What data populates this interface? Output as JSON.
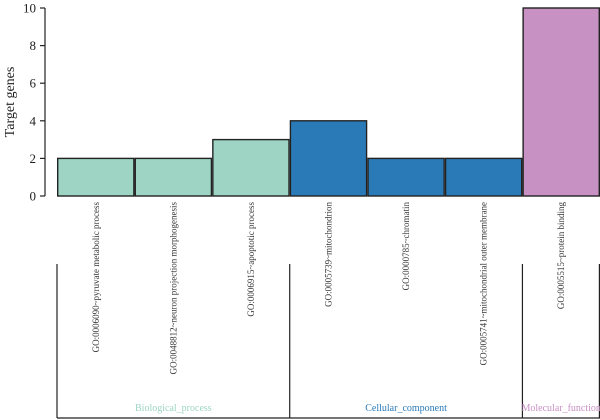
{
  "chart_data": {
    "type": "bar",
    "ylabel": "Target genes",
    "ylim": [
      0,
      10
    ],
    "yticks": [
      0,
      2,
      4,
      6,
      8,
      10
    ],
    "categories": [
      "GO:0006090~pyruvate metabolic process",
      "GO:0048812~neuron projection morphogenesis",
      "GO:0006915~apoptotic process",
      "GO:0005739~mitochondrion",
      "GO:0000785~chromatin",
      "GO:0005741~mitochondrial outer membrane",
      "GO:0005515~protein binding"
    ],
    "values": [
      2,
      2,
      3,
      4,
      2,
      2,
      10
    ],
    "groups": [
      {
        "name": "Biological_process",
        "count": 3,
        "color": "#9dd4c4"
      },
      {
        "name": "Cellular_component",
        "count": 3,
        "color": "#2a7ab8"
      },
      {
        "name": "Molecular_function",
        "count": 1,
        "color": "#c791c4"
      }
    ]
  }
}
